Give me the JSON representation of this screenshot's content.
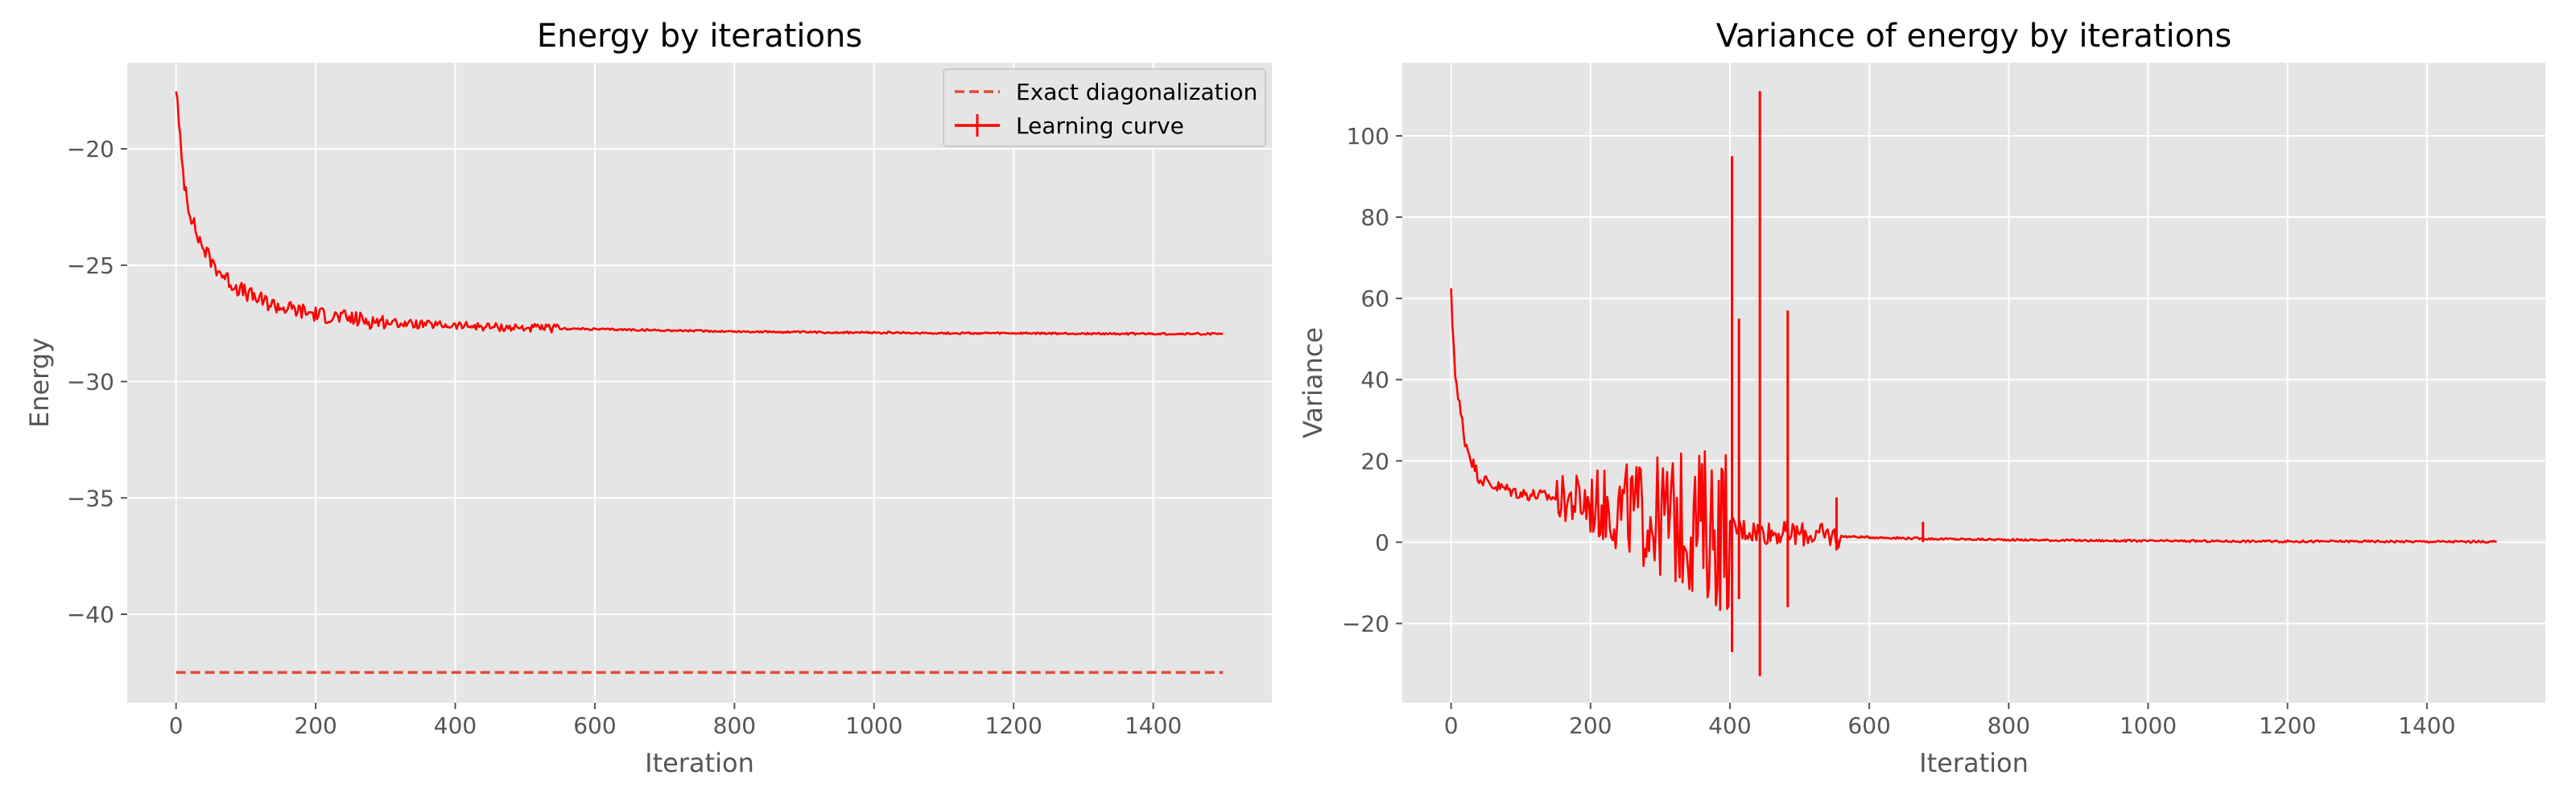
{
  "chart_data": [
    {
      "type": "line",
      "title": "Energy by iterations",
      "xlabel": "Iteration",
      "ylabel": "Energy",
      "xlim": [
        -70,
        1570
      ],
      "ylim": [
        -43.8,
        -16.3
      ],
      "xticks": [
        0,
        200,
        400,
        600,
        800,
        1000,
        1200,
        1400
      ],
      "xtick_labels": [
        "0",
        "200",
        "400",
        "600",
        "800",
        "1000",
        "1200",
        "1400"
      ],
      "yticks": [
        -40,
        -35,
        -30,
        -25,
        -20
      ],
      "ytick_labels": [
        "−40",
        "−35",
        "−30",
        "−25",
        "−20"
      ],
      "grid": true,
      "legend": "upper right",
      "legend_entries": [
        "Exact diagonalization",
        "Learning curve"
      ],
      "series": [
        {
          "name": "Exact diagonalization",
          "style": "dashed",
          "color": "#e24a33",
          "x": [
            0,
            1500
          ],
          "y": [
            -42.5,
            -42.5
          ]
        },
        {
          "name": "Learning curve",
          "style": "solid-errorbar",
          "color": "#ff0000",
          "x": [
            0,
            5,
            10,
            20,
            30,
            40,
            50,
            60,
            80,
            100,
            120,
            150,
            200,
            250,
            300,
            350,
            400,
            450,
            500,
            600,
            700,
            800,
            900,
            1000,
            1100,
            1200,
            1300,
            1400,
            1500
          ],
          "y": [
            -17.2,
            -19.5,
            -21.0,
            -22.7,
            -23.7,
            -24.3,
            -24.8,
            -25.2,
            -25.8,
            -26.2,
            -26.5,
            -26.8,
            -27.1,
            -27.3,
            -27.45,
            -27.55,
            -27.6,
            -27.65,
            -27.7,
            -27.75,
            -27.8,
            -27.85,
            -27.88,
            -27.9,
            -27.92,
            -27.93,
            -27.94,
            -27.95,
            -27.95
          ]
        }
      ]
    },
    {
      "type": "line",
      "title": "Variance of energy by iterations",
      "xlabel": "Iteration",
      "ylabel": "Variance",
      "xlim": [
        -70,
        1570
      ],
      "ylim": [
        -39.5,
        118
      ],
      "xticks": [
        0,
        200,
        400,
        600,
        800,
        1000,
        1200,
        1400
      ],
      "xtick_labels": [
        "0",
        "200",
        "400",
        "600",
        "800",
        "1000",
        "1200",
        "1400"
      ],
      "yticks": [
        -20,
        0,
        20,
        40,
        60,
        80,
        100
      ],
      "ytick_labels": [
        "−20",
        "0",
        "20",
        "40",
        "60",
        "80",
        "100"
      ],
      "grid": true,
      "series": [
        {
          "name": "",
          "color": "#ff0000",
          "x": [
            0,
            5,
            10,
            20,
            30,
            40,
            60,
            80,
            100,
            150,
            200,
            250,
            300,
            350,
            400,
            450,
            500,
            550,
            600,
            700,
            800,
            900,
            1000,
            1100,
            1200,
            1300,
            1400,
            1500
          ],
          "y": [
            60,
            45,
            35,
            25,
            20,
            16,
            14,
            13,
            12,
            11,
            9.5,
            8,
            6,
            4.5,
            3.5,
            2.5,
            2,
            1.5,
            1.2,
            0.8,
            0.6,
            0.4,
            0.3,
            0.25,
            0.2,
            0.2,
            0.15,
            0.1
          ]
        }
      ],
      "spikes": [
        {
          "x": 403,
          "low": -27,
          "high": 95
        },
        {
          "x": 443,
          "low": -33,
          "high": 111
        },
        {
          "x": 413,
          "low": -14,
          "high": 55
        },
        {
          "x": 483,
          "low": -16,
          "high": 57
        },
        {
          "x": 553,
          "low": -2,
          "high": 11
        },
        {
          "x": 677,
          "low": 0,
          "high": 5
        }
      ]
    }
  ]
}
